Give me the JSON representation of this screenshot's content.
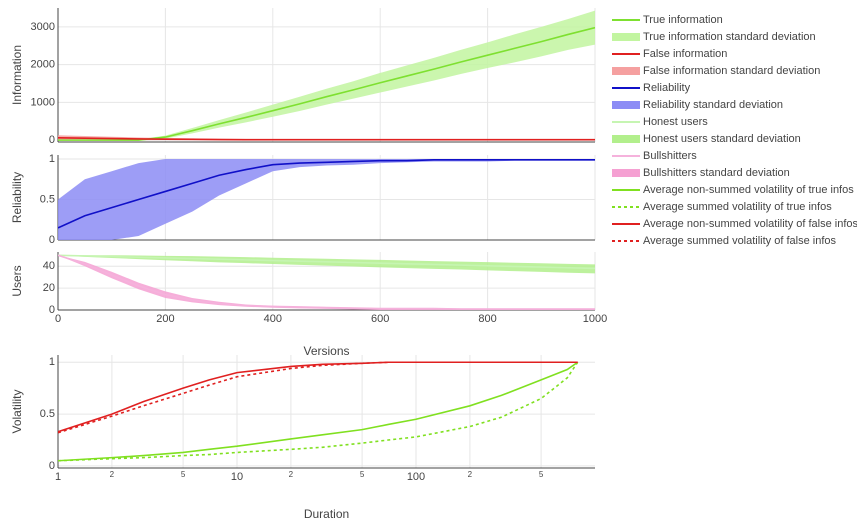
{
  "chart_data": [
    {
      "type": "line",
      "ylabel": "Information",
      "x": [
        0,
        50,
        100,
        150,
        200,
        250,
        300,
        350,
        400,
        450,
        500,
        550,
        600,
        650,
        700,
        750,
        800,
        850,
        900,
        950,
        1000
      ],
      "xlim": [
        0,
        1000
      ],
      "ylim": [
        -50,
        3500
      ],
      "yticks": [
        0,
        1000,
        2000,
        3000
      ],
      "grid": true,
      "series": [
        {
          "name": "True information",
          "style": "line",
          "color": "#7ee030",
          "values": [
            0,
            0,
            0,
            0,
            80,
            250,
            430,
            600,
            780,
            960,
            1150,
            1330,
            1520,
            1700,
            1880,
            2070,
            2250,
            2430,
            2610,
            2800,
            2980
          ]
        },
        {
          "name": "True information standard deviation",
          "style": "band",
          "color": "#c2f5a0",
          "low": [
            0,
            -10,
            -15,
            -20,
            40,
            180,
            330,
            470,
            620,
            770,
            940,
            1100,
            1260,
            1420,
            1580,
            1750,
            1910,
            2060,
            2220,
            2390,
            2530
          ],
          "high": [
            0,
            10,
            15,
            20,
            120,
            320,
            530,
            730,
            940,
            1150,
            1360,
            1560,
            1780,
            1980,
            2180,
            2390,
            2590,
            2800,
            3000,
            3210,
            3430
          ]
        },
        {
          "name": "False information",
          "style": "line",
          "color": "#e02020",
          "values": [
            60,
            50,
            40,
            30,
            25,
            20,
            15,
            12,
            10,
            10,
            10,
            10,
            10,
            10,
            10,
            10,
            10,
            10,
            10,
            10,
            10
          ]
        },
        {
          "name": "False information standard deviation",
          "style": "band",
          "color": "#f5a0a0",
          "low": [
            0,
            0,
            0,
            0,
            0,
            0,
            0,
            0,
            0,
            0,
            0,
            0,
            0,
            0,
            0,
            0,
            0,
            0,
            0,
            0,
            0
          ],
          "high": [
            130,
            110,
            90,
            70,
            55,
            45,
            35,
            28,
            24,
            22,
            20,
            20,
            20,
            20,
            20,
            20,
            20,
            20,
            20,
            20,
            20
          ]
        }
      ]
    },
    {
      "type": "line",
      "ylabel": "Reliability",
      "x": [
        0,
        50,
        100,
        150,
        200,
        250,
        300,
        350,
        400,
        450,
        500,
        550,
        600,
        650,
        700,
        750,
        800,
        850,
        900,
        950,
        1000
      ],
      "xlim": [
        0,
        1000
      ],
      "ylim": [
        0,
        1.05
      ],
      "yticks": [
        0,
        0.5,
        1
      ],
      "grid": true,
      "series": [
        {
          "name": "Reliability",
          "style": "line",
          "color": "#1010c8",
          "values": [
            0.15,
            0.3,
            0.4,
            0.5,
            0.6,
            0.7,
            0.8,
            0.87,
            0.93,
            0.95,
            0.96,
            0.97,
            0.98,
            0.98,
            0.99,
            0.99,
            0.99,
            0.99,
            0.99,
            0.99,
            0.99
          ]
        },
        {
          "name": "Reliability standard deviation",
          "style": "band",
          "color": "#8c8cf5",
          "low": [
            0,
            0,
            0,
            0.05,
            0.2,
            0.35,
            0.55,
            0.7,
            0.85,
            0.9,
            0.92,
            0.93,
            0.95,
            0.96,
            0.97,
            0.97,
            0.97,
            0.98,
            0.98,
            0.98,
            0.98
          ],
          "high": [
            0.5,
            0.75,
            0.85,
            0.95,
            1,
            1,
            1,
            1,
            1,
            1,
            1,
            1,
            1,
            1,
            1,
            1,
            1,
            1,
            1,
            1,
            1
          ]
        }
      ]
    },
    {
      "type": "line",
      "ylabel": "Users",
      "xlabel": "Versions",
      "x": [
        0,
        50,
        100,
        150,
        200,
        250,
        300,
        350,
        400,
        450,
        500,
        550,
        600,
        650,
        700,
        750,
        800,
        850,
        900,
        950,
        1000
      ],
      "xlim": [
        0,
        1000
      ],
      "xticks": [
        0,
        200,
        400,
        600,
        800,
        1000
      ],
      "ylim": [
        0,
        53
      ],
      "yticks": [
        0,
        20,
        40
      ],
      "grid": true,
      "series": [
        {
          "name": "Honest users",
          "style": "line",
          "color": "#c6f5b2",
          "values": [
            50,
            49.4,
            48.8,
            48.2,
            47.6,
            47,
            46.4,
            45.8,
            45.2,
            44.6,
            44,
            43.4,
            42.8,
            42.2,
            41.6,
            41,
            40.4,
            39.8,
            39.2,
            38.6,
            38
          ]
        },
        {
          "name": "Honest users standard deviation",
          "style": "band",
          "color": "#b2ef8c",
          "low": [
            50,
            48.5,
            47.5,
            46.5,
            45.5,
            44.5,
            43.5,
            42.8,
            42,
            41.2,
            40.5,
            39.8,
            39,
            38.3,
            37.6,
            37,
            36.2,
            35.5,
            34.8,
            34,
            33.5
          ],
          "high": [
            50,
            50,
            50,
            49.8,
            49.5,
            49.2,
            48.8,
            48.3,
            47.8,
            47.3,
            46.8,
            46.3,
            45.8,
            45.2,
            44.7,
            44.2,
            43.7,
            43.2,
            42.7,
            42.2,
            41.7
          ]
        },
        {
          "name": "Bullshitters",
          "style": "line",
          "color": "#f5b2dc",
          "values": [
            50,
            42,
            32,
            22,
            14,
            9,
            6,
            4,
            3,
            2.5,
            2,
            1.5,
            1,
            1,
            1,
            0.8,
            0.8,
            0.8,
            0.8,
            0.8,
            0.8
          ]
        },
        {
          "name": "Bullshitters standard deviation",
          "style": "band",
          "color": "#f5a0d2",
          "low": [
            50,
            40,
            29,
            19,
            11,
            7,
            4.5,
            3,
            2,
            1.5,
            1,
            0.5,
            0,
            0,
            0,
            0,
            0,
            0,
            0,
            0,
            0
          ],
          "high": [
            50,
            44,
            35,
            25,
            17,
            11,
            7.5,
            5,
            4,
            3.5,
            3,
            2.5,
            2,
            2,
            2,
            1.6,
            1.6,
            1.6,
            1.6,
            1.6,
            1.6
          ]
        }
      ]
    },
    {
      "type": "line",
      "ylabel": "Volatility",
      "xlabel": "Duration",
      "xscale": "log",
      "x": [
        1,
        2,
        3,
        5,
        7,
        10,
        20,
        30,
        50,
        70,
        100,
        200,
        300,
        500,
        700,
        800
      ],
      "xlim": [
        1,
        1000
      ],
      "xticks": [
        1,
        2,
        5,
        10,
        {
          "value": 20,
          "label": "2"
        },
        {
          "value": 50,
          "label": "5"
        },
        100,
        {
          "value": 200,
          "label": "2"
        },
        {
          "value": 500,
          "label": "5"
        }
      ],
      "ylim": [
        -0.02,
        1.07
      ],
      "yticks": [
        0,
        0.5,
        1
      ],
      "grid": true,
      "series": [
        {
          "name": "Average non-summed volatility of true infos",
          "style": "line",
          "color": "#80e020",
          "values": [
            0.05,
            0.08,
            0.1,
            0.13,
            0.16,
            0.19,
            0.26,
            0.3,
            0.35,
            0.4,
            0.45,
            0.58,
            0.68,
            0.83,
            0.93,
            1
          ]
        },
        {
          "name": "Average summed volatility of true infos",
          "style": "dotted",
          "color": "#80e020",
          "values": [
            0.05,
            0.07,
            0.08,
            0.1,
            0.11,
            0.13,
            0.16,
            0.18,
            0.22,
            0.25,
            0.28,
            0.38,
            0.47,
            0.65,
            0.85,
            1
          ]
        },
        {
          "name": "Average non-summed volatility of false infos",
          "style": "line",
          "color": "#e02020",
          "values": [
            0.33,
            0.5,
            0.62,
            0.75,
            0.83,
            0.9,
            0.96,
            0.98,
            0.99,
            1,
            1,
            1,
            1,
            1,
            1,
            1
          ]
        },
        {
          "name": "Average summed volatility of false infos",
          "style": "dotted",
          "color": "#e02020",
          "values": [
            0.32,
            0.48,
            0.58,
            0.7,
            0.78,
            0.86,
            0.94,
            0.97,
            0.99,
            1,
            1,
            1,
            1,
            1,
            1,
            1
          ]
        }
      ]
    }
  ]
}
